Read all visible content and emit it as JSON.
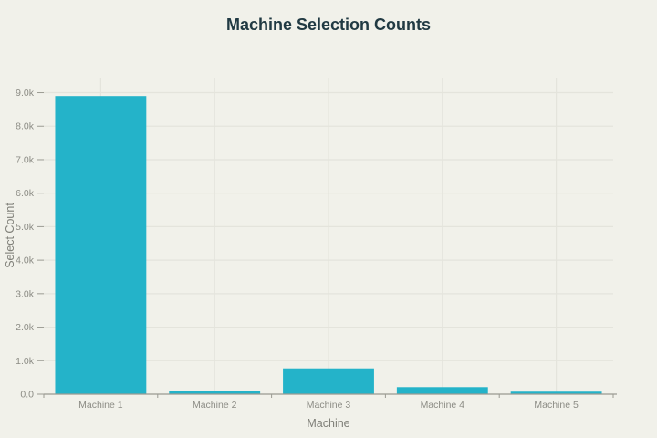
{
  "page": {
    "background_color": "#f1f1ea"
  },
  "chart_data": {
    "type": "bar",
    "title": "Machine Selection Counts",
    "xlabel": "Machine",
    "ylabel": "Select Count",
    "categories": [
      "Machine 1",
      "Machine 2",
      "Machine 3",
      "Machine 4",
      "Machine 5"
    ],
    "values": [
      8900,
      90,
      770,
      210,
      75
    ],
    "ylim": [
      0,
      9450
    ],
    "yticks": [
      0,
      1000,
      2000,
      3000,
      4000,
      5000,
      6000,
      7000,
      8000,
      9000
    ],
    "ytick_labels": [
      "0.0",
      "1.0k",
      "2.0k",
      "3.0k",
      "4.0k",
      "5.0k",
      "6.0k",
      "7.0k",
      "8.0k",
      "9.0k"
    ],
    "grid": true,
    "legend_position": "none",
    "colors": {
      "bar": "#24b3c9",
      "background": "#f1f1ea",
      "grid": "#e4e4dc",
      "axis": "#9b9b93",
      "tick_text": "#8c8c85",
      "axis_title_text": "#7f7f78",
      "title_text": "#213a43"
    }
  }
}
